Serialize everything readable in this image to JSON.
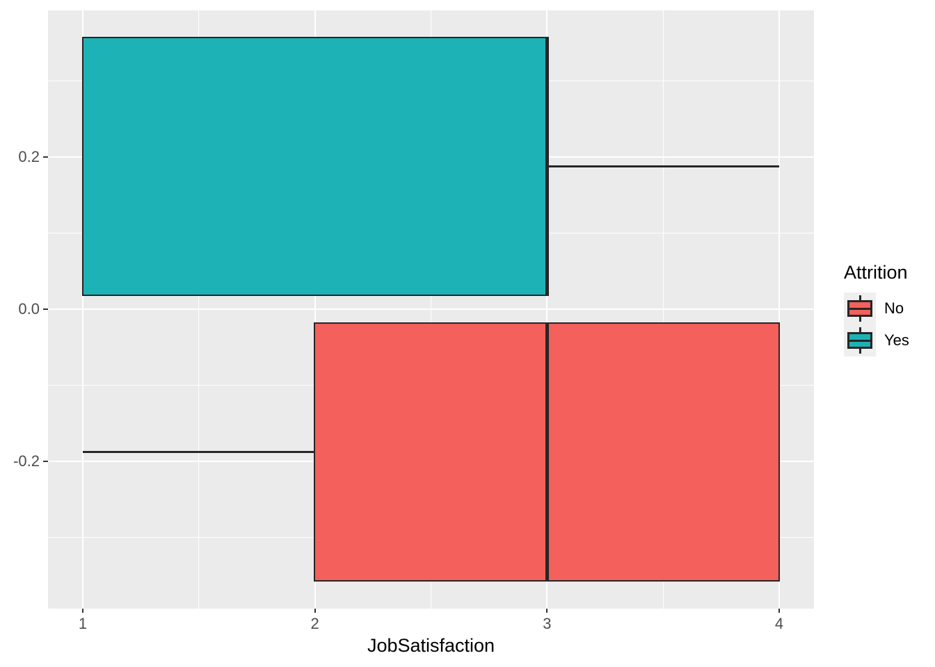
{
  "figure": {
    "background": "#FFFFFF",
    "panel_background": "#EBEBEB",
    "gridline_color": "#FFFFFF",
    "outline_color": "#262626",
    "tick_mark_color": "#333333",
    "axis_text_color": "#4D4D4D",
    "title_text_color": "#000000"
  },
  "chart_data": {
    "type": "boxplot",
    "orientation": "horizontal",
    "title": "",
    "xlabel": "JobSatisfaction",
    "ylabel": "",
    "x_axis": {
      "range": [
        0.85,
        4.15
      ],
      "ticks": [
        1,
        2,
        3,
        4
      ],
      "tick_labels": [
        "1",
        "2",
        "3",
        "4"
      ],
      "minor_gridlines": [
        1.5,
        2.5,
        3.5
      ]
    },
    "y_axis": {
      "range": [
        -0.3936,
        0.3927
      ],
      "ticks": [
        0.2,
        0.0,
        -0.2
      ],
      "tick_labels": [
        "0.2",
        "0.0",
        "-0.2"
      ],
      "minor_gridlines": [
        -0.3,
        -0.1,
        0.1,
        0.3
      ]
    },
    "grid": true,
    "legend": {
      "title": "Attrition",
      "position": "right",
      "entries": [
        {
          "label": "No",
          "color": "#F4605B"
        },
        {
          "label": "Yes",
          "color": "#1DB2B5"
        }
      ]
    },
    "series": [
      {
        "name": "No",
        "fill": "#F4605B",
        "stats": {
          "min": 1,
          "q1": 2,
          "median": 3,
          "q3": 4,
          "max": 4
        },
        "y_center": -0.1875,
        "box_half_height": 0.169
      },
      {
        "name": "Yes",
        "fill": "#1DB2B5",
        "stats": {
          "min": 1,
          "q1": 1,
          "median": 3,
          "q3": 3,
          "max": 4
        },
        "y_center": 0.1875,
        "box_half_height": 0.169
      }
    ]
  }
}
